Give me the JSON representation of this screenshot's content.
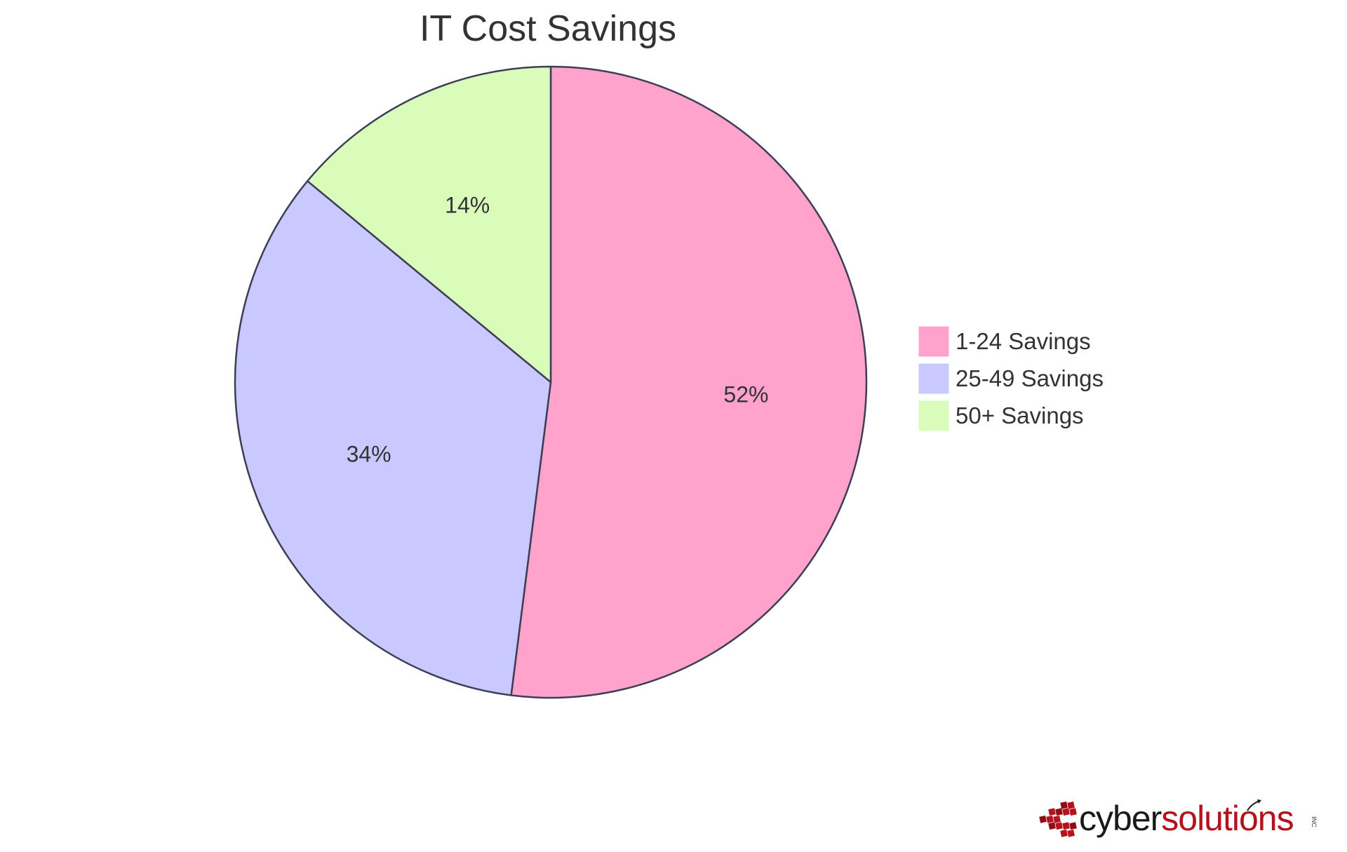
{
  "chart_data": {
    "type": "pie",
    "title": "IT Cost Savings",
    "slices": [
      {
        "name": "1-24 Savings",
        "value": 52,
        "label": "52%",
        "color": "#ffa3cc"
      },
      {
        "name": "25-49 Savings",
        "value": 34,
        "label": "34%",
        "color": "#c9c9ff"
      },
      {
        "name": "50+ Savings",
        "value": 14,
        "label": "14%",
        "color": "#dafcbb"
      }
    ],
    "start": "12 o'clock",
    "direction": "clockwise",
    "slice_stroke": "#3d3d56",
    "legend_position": "right"
  },
  "logo": {
    "word_first": "cyber",
    "word_second": "solutions",
    "suffix": "INC",
    "first_color": "#1a1a1a",
    "second_color": "#b5121b"
  }
}
